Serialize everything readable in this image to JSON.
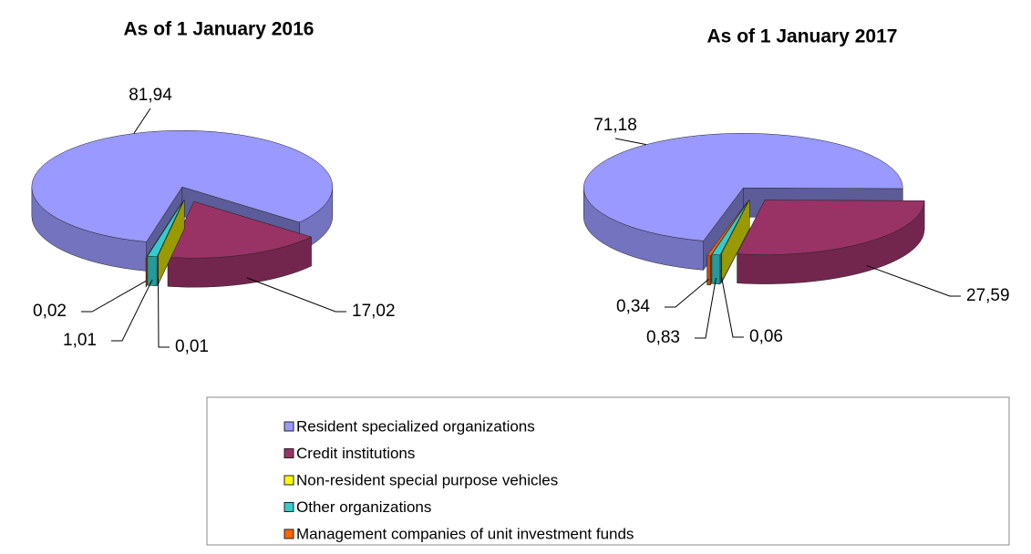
{
  "chart_data": [
    {
      "type": "pie",
      "title": "As of 1 January 2016",
      "categories": [
        "Resident specialized organizations",
        "Credit institutions",
        "Non-resident special purpose vehicles",
        "Other organizations",
        "Management companies of unit investment funds"
      ],
      "colors": [
        "#9999ff",
        "#993366",
        "#ffff00",
        "#33cccc",
        "#ff6600"
      ],
      "values": [
        81.94,
        17.02,
        0.01,
        1.01,
        0.02
      ],
      "value_labels": [
        "81,94",
        "17,02",
        "0,01",
        "1,01",
        "0,02"
      ]
    },
    {
      "type": "pie",
      "title": "As of 1 January 2017",
      "values": [
        71.18,
        27.59,
        0.06,
        0.83,
        0.34
      ],
      "value_labels": [
        "71,18",
        "27,59",
        "0,06",
        "0,83",
        "0,34"
      ]
    }
  ]
}
